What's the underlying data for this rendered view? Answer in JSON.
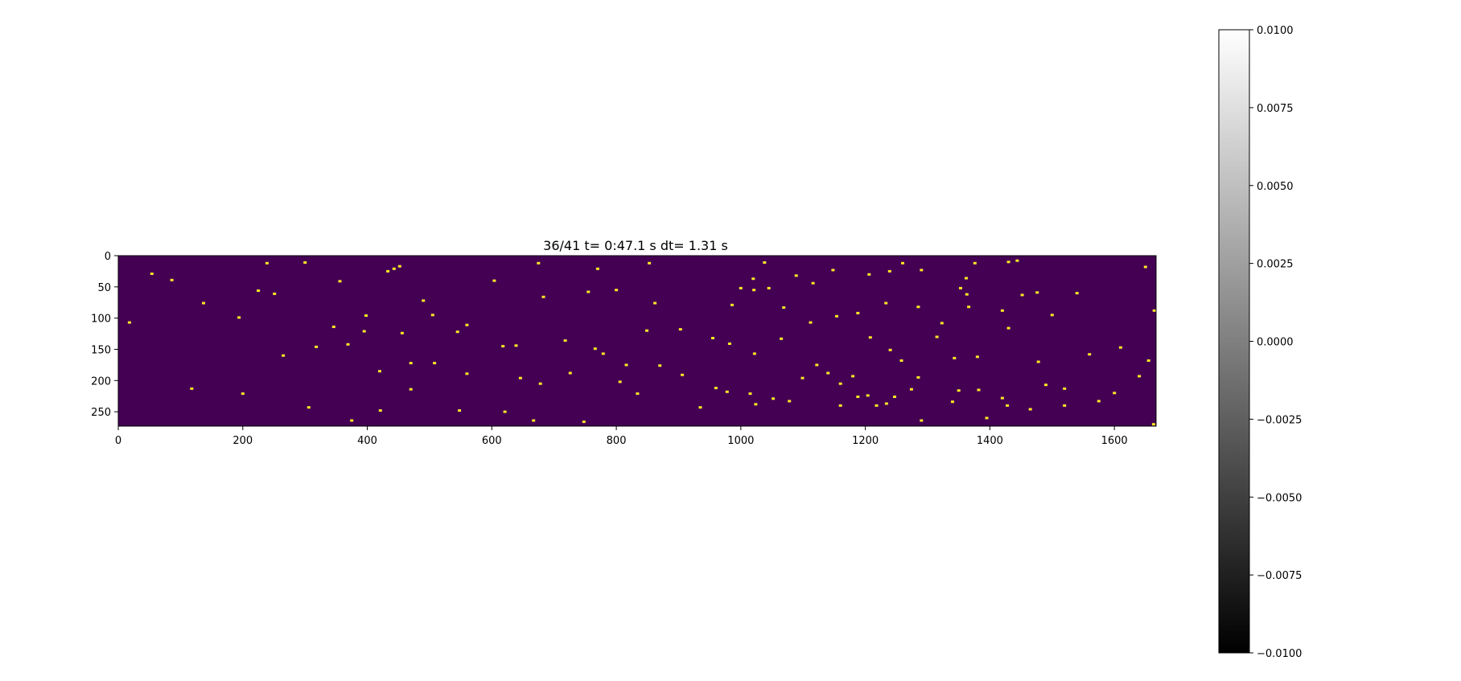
{
  "chart_data": [
    {
      "type": "heatmap",
      "title": "36/41  t= 0:47.1 s dt= 1.31 s",
      "xlabel": "",
      "ylabel": "",
      "xlim": [
        0,
        1667
      ],
      "ylim": [
        273,
        0
      ],
      "x_ticks": [
        {
          "value": 0,
          "label": "0"
        },
        {
          "value": 200,
          "label": "200"
        },
        {
          "value": 400,
          "label": "400"
        },
        {
          "value": 600,
          "label": "600"
        },
        {
          "value": 800,
          "label": "800"
        },
        {
          "value": 1000,
          "label": "1000"
        },
        {
          "value": 1200,
          "label": "1200"
        },
        {
          "value": 1400,
          "label": "1400"
        },
        {
          "value": 1600,
          "label": "1600"
        }
      ],
      "y_ticks": [
        {
          "value": 0,
          "label": "0"
        },
        {
          "value": 50,
          "label": "50"
        },
        {
          "value": 100,
          "label": "100"
        },
        {
          "value": 150,
          "label": "150"
        },
        {
          "value": 200,
          "label": "200"
        },
        {
          "value": 250,
          "label": "250"
        }
      ],
      "background_color": "#440154",
      "event_color": "#fde725",
      "events": [
        [
          239,
          12
        ],
        [
          300,
          11
        ],
        [
          433,
          25
        ],
        [
          443,
          21
        ],
        [
          452,
          17
        ],
        [
          675,
          12
        ],
        [
          770,
          21
        ],
        [
          853,
          12
        ],
        [
          1038,
          11
        ],
        [
          1148,
          23
        ],
        [
          1290,
          23
        ],
        [
          1430,
          10
        ],
        [
          1444,
          8
        ],
        [
          1362,
          36
        ],
        [
          1353,
          52
        ],
        [
          1363,
          62
        ],
        [
          1020,
          37
        ],
        [
          1045,
          52
        ],
        [
          1089,
          32
        ],
        [
          1206,
          30
        ],
        [
          1239,
          25
        ],
        [
          1376,
          12
        ],
        [
          54,
          29
        ],
        [
          86,
          39
        ],
        [
          137,
          76
        ],
        [
          225,
          56
        ],
        [
          251,
          61
        ],
        [
          356,
          41
        ],
        [
          398,
          96
        ],
        [
          490,
          72
        ],
        [
          505,
          95
        ],
        [
          560,
          111
        ],
        [
          604,
          40
        ],
        [
          683,
          66
        ],
        [
          755,
          58
        ],
        [
          800,
          55
        ],
        [
          862,
          76
        ],
        [
          986,
          79
        ],
        [
          1000,
          52
        ],
        [
          1021,
          55
        ],
        [
          1069,
          83
        ],
        [
          1112,
          107
        ],
        [
          1154,
          97
        ],
        [
          1188,
          92
        ],
        [
          1233,
          76
        ],
        [
          1285,
          82
        ],
        [
          1323,
          108
        ],
        [
          1366,
          82
        ],
        [
          1420,
          88
        ],
        [
          1452,
          63
        ],
        [
          1500,
          95
        ],
        [
          1540,
          60
        ],
        [
          18,
          107
        ],
        [
          194,
          99
        ],
        [
          346,
          114
        ],
        [
          395,
          121
        ],
        [
          456,
          124
        ],
        [
          545,
          122
        ],
        [
          618,
          145
        ],
        [
          639,
          144
        ],
        [
          718,
          136
        ],
        [
          766,
          149
        ],
        [
          779,
          157
        ],
        [
          816,
          175
        ],
        [
          849,
          120
        ],
        [
          903,
          118
        ],
        [
          955,
          132
        ],
        [
          982,
          141
        ],
        [
          1022,
          157
        ],
        [
          1065,
          133
        ],
        [
          1122,
          175
        ],
        [
          1140,
          188
        ],
        [
          1180,
          193
        ],
        [
          1208,
          131
        ],
        [
          1240,
          151
        ],
        [
          1258,
          168
        ],
        [
          1285,
          195
        ],
        [
          1315,
          130
        ],
        [
          1343,
          164
        ],
        [
          1380,
          162
        ],
        [
          1430,
          116
        ],
        [
          1478,
          170
        ],
        [
          1560,
          158
        ],
        [
          1610,
          147
        ],
        [
          265,
          160
        ],
        [
          318,
          146
        ],
        [
          369,
          142
        ],
        [
          420,
          185
        ],
        [
          470,
          172
        ],
        [
          508,
          172
        ],
        [
          560,
          189
        ],
        [
          646,
          196
        ],
        [
          678,
          205
        ],
        [
          726,
          188
        ],
        [
          806,
          202
        ],
        [
          870,
          176
        ],
        [
          906,
          191
        ],
        [
          960,
          212
        ],
        [
          1015,
          221
        ],
        [
          1052,
          229
        ],
        [
          1099,
          196
        ],
        [
          1160,
          205
        ],
        [
          1204,
          224
        ],
        [
          1234,
          237
        ],
        [
          1274,
          214
        ],
        [
          1350,
          216
        ],
        [
          1382,
          215
        ],
        [
          1420,
          228
        ],
        [
          1490,
          207
        ],
        [
          1520,
          213
        ],
        [
          1600,
          220
        ],
        [
          1640,
          193
        ],
        [
          1655,
          168
        ],
        [
          118,
          213
        ],
        [
          200,
          221
        ],
        [
          306,
          243
        ],
        [
          375,
          264
        ],
        [
          421,
          248
        ],
        [
          470,
          214
        ],
        [
          548,
          248
        ],
        [
          621,
          250
        ],
        [
          667,
          264
        ],
        [
          748,
          266
        ],
        [
          834,
          221
        ],
        [
          935,
          243
        ],
        [
          978,
          218
        ],
        [
          1024,
          238
        ],
        [
          1078,
          233
        ],
        [
          1160,
          240
        ],
        [
          1188,
          226
        ],
        [
          1218,
          240
        ],
        [
          1247,
          226
        ],
        [
          1290,
          264
        ],
        [
          1340,
          234
        ],
        [
          1395,
          260
        ],
        [
          1428,
          240
        ],
        [
          1465,
          246
        ],
        [
          1520,
          240
        ],
        [
          1575,
          233
        ],
        [
          1663,
          270
        ],
        [
          1650,
          18
        ],
        [
          1664,
          88
        ],
        [
          1116,
          44
        ],
        [
          1260,
          12
        ],
        [
          1476,
          59
        ]
      ]
    },
    {
      "type": "colorbar",
      "colormap": "gray",
      "range": [
        -0.01,
        0.01
      ],
      "ticks": [
        {
          "value": 0.01,
          "label": "0.0100"
        },
        {
          "value": 0.0075,
          "label": "0.0075"
        },
        {
          "value": 0.005,
          "label": "0.0050"
        },
        {
          "value": 0.0025,
          "label": "0.0025"
        },
        {
          "value": 0.0,
          "label": "0.0000"
        },
        {
          "value": -0.0025,
          "label": "−0.0025"
        },
        {
          "value": -0.005,
          "label": "−0.0050"
        },
        {
          "value": -0.0075,
          "label": "−0.0075"
        },
        {
          "value": -0.01,
          "label": "−0.0100"
        }
      ]
    }
  ]
}
